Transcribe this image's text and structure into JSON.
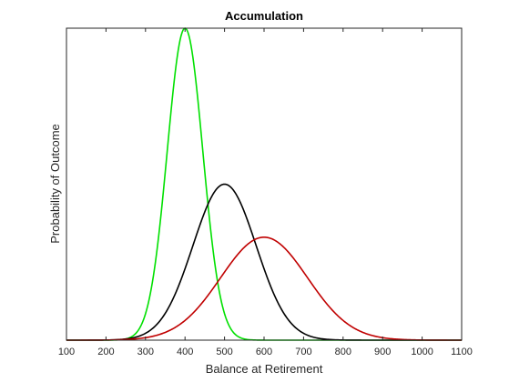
{
  "chart_data": {
    "type": "line",
    "title": "Accumulation",
    "xlabel": "Balance at Retirement",
    "ylabel": "Probability of Outcome",
    "xlim": [
      100,
      1100
    ],
    "ylim": [
      0,
      1
    ],
    "x_ticks": [
      "100",
      "200",
      "300",
      "400",
      "500",
      "600",
      "700",
      "800",
      "900",
      "1000",
      "1100"
    ],
    "grid": false,
    "series": [
      {
        "color": "#00e000",
        "kind": "normal",
        "mean": 400,
        "std": 45,
        "peak": 1.0
      },
      {
        "color": "#000000",
        "kind": "normal",
        "mean": 500,
        "std": 80,
        "peak": 0.5
      },
      {
        "color": "#c00000",
        "kind": "normal",
        "mean": 600,
        "std": 110,
        "peak": 0.33
      }
    ]
  }
}
